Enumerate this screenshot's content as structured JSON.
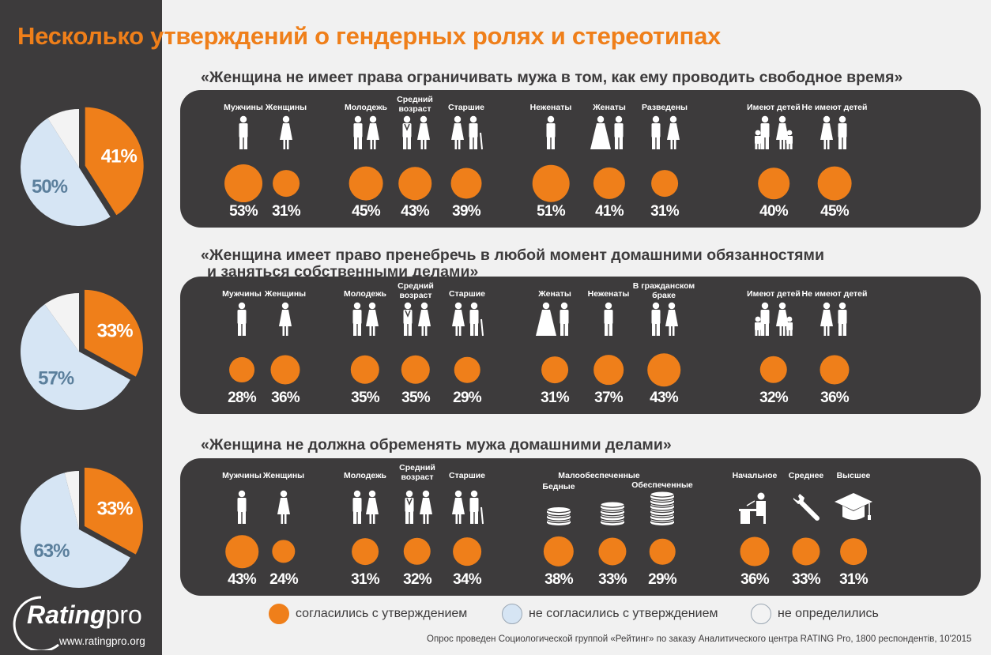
{
  "title": "Несколько утверждений о гендерных ролях и стереотипах",
  "colors": {
    "agree": "#ef7f1a",
    "disagree": "#d6e5f4",
    "undecided": "#f3f3f3",
    "dark": "#3d3b3c"
  },
  "chart_data": [
    {
      "type": "pie",
      "title": "«Женщина не имеет права ограничивать мужа в том, как ему проводить свободное время»",
      "slices": [
        {
          "name": "согласились с утверждением",
          "value": 41,
          "label": "41%"
        },
        {
          "name": "не согласились с утверждением",
          "value": 50,
          "label": "50%"
        },
        {
          "name": "не определились",
          "value": 9,
          "label": ""
        }
      ],
      "groups": [
        {
          "name": "Мужчины",
          "icon": "man-icon",
          "value": 53,
          "label": "53%"
        },
        {
          "name": "Женщины",
          "icon": "woman-icon",
          "value": 31,
          "label": "31%"
        },
        {
          "name": "Молодежь",
          "icon": "youth-couple-icon",
          "value": 45,
          "label": "45%"
        },
        {
          "name": "Средний возраст",
          "icon": "middle-age-couple-icon",
          "value": 43,
          "label": "43%"
        },
        {
          "name": "Старшие",
          "icon": "elderly-couple-icon",
          "value": 39,
          "label": "39%"
        },
        {
          "name": "Неженаты",
          "icon": "single-man-icon",
          "value": 51,
          "label": "51%"
        },
        {
          "name": "Женаты",
          "icon": "married-couple-icon",
          "value": 41,
          "label": "41%"
        },
        {
          "name": "Разведены",
          "icon": "divorced-couple-icon",
          "value": 31,
          "label": "31%"
        },
        {
          "name": "Имеют детей",
          "icon": "family-with-children-icon",
          "value": 40,
          "label": "40%"
        },
        {
          "name": "Не имеют детей",
          "icon": "childless-couple-icon",
          "value": 45,
          "label": "45%"
        }
      ]
    },
    {
      "type": "pie",
      "title": "«Женщина имеет право пренебречь в любой момент домашними обязанностями и заняться собственными делами»",
      "title_line1": "«Женщина имеет право пренебречь в любой момент домашними обязанностями",
      "title_line2": "и заняться собственными делами»",
      "slices": [
        {
          "name": "согласились с утверждением",
          "value": 33,
          "label": "33%"
        },
        {
          "name": "не согласились с утверждением",
          "value": 57,
          "label": "57%"
        },
        {
          "name": "не определились",
          "value": 10,
          "label": ""
        }
      ],
      "groups": [
        {
          "name": "Мужчины",
          "icon": "man-icon",
          "value": 28,
          "label": "28%"
        },
        {
          "name": "Женщины",
          "icon": "woman-icon",
          "value": 36,
          "label": "36%"
        },
        {
          "name": "Молодежь",
          "icon": "youth-couple-icon",
          "value": 35,
          "label": "35%"
        },
        {
          "name": "Средний возраст",
          "icon": "middle-age-couple-icon",
          "value": 35,
          "label": "35%"
        },
        {
          "name": "Старшие",
          "icon": "elderly-couple-icon",
          "value": 29,
          "label": "29%"
        },
        {
          "name": "Женаты",
          "icon": "married-couple-icon",
          "value": 31,
          "label": "31%"
        },
        {
          "name": "Неженаты",
          "icon": "single-man-icon",
          "value": 37,
          "label": "37%"
        },
        {
          "name": "В гражданском браке",
          "icon": "civil-marriage-couple-icon",
          "value": 43,
          "label": "43%"
        },
        {
          "name": "Имеют детей",
          "icon": "family-with-children-icon",
          "value": 32,
          "label": "32%"
        },
        {
          "name": "Не имеют детей",
          "icon": "childless-couple-icon",
          "value": 36,
          "label": "36%"
        }
      ]
    },
    {
      "type": "pie",
      "title": "«Женщина не должна обременять мужа домашними делами»",
      "slices": [
        {
          "name": "согласились с утверждением",
          "value": 33,
          "label": "33%"
        },
        {
          "name": "не согласились с утверждением",
          "value": 63,
          "label": "63%"
        },
        {
          "name": "не определились",
          "value": 4,
          "label": ""
        }
      ],
      "income_header": "Малообеспеченные",
      "groups": [
        {
          "name": "Мужчины",
          "icon": "man-icon",
          "value": 43,
          "label": "43%"
        },
        {
          "name": "Женщины",
          "icon": "woman-icon",
          "value": 24,
          "label": "24%"
        },
        {
          "name": "Молодежь",
          "icon": "youth-couple-icon",
          "value": 31,
          "label": "31%"
        },
        {
          "name": "Средний возраст",
          "icon": "middle-age-couple-icon",
          "value": 32,
          "label": "32%"
        },
        {
          "name": "Старшие",
          "icon": "elderly-couple-icon",
          "value": 34,
          "label": "34%"
        },
        {
          "name": "Бедные",
          "icon": "small-coin-stack-icon",
          "value": 38,
          "label": "38%"
        },
        {
          "name": "",
          "icon": "medium-coin-stack-icon",
          "value": 33,
          "label": "33%"
        },
        {
          "name": "Обеспеченные",
          "icon": "large-coin-stack-icon",
          "value": 29,
          "label": "29%"
        },
        {
          "name": "Начальное",
          "icon": "student-desk-icon",
          "value": 36,
          "label": "36%"
        },
        {
          "name": "Среднее",
          "icon": "wrench-icon",
          "value": 33,
          "label": "33%"
        },
        {
          "name": "Высшее",
          "icon": "graduation-cap-icon",
          "value": 31,
          "label": "31%"
        }
      ]
    }
  ],
  "legend": {
    "agree": "согласились с утверждением",
    "disagree": "не согласились с утверждением",
    "undecided": "не определились"
  },
  "footnote": "Опрос проведен Социологической группой «Рейтинг» по заказу Аналитического центра RATING Pro, 1800 респондентів, 10'2015",
  "logo": {
    "brand": "Rating",
    "suffix": "pro",
    "url": "www.ratingpro.org"
  }
}
